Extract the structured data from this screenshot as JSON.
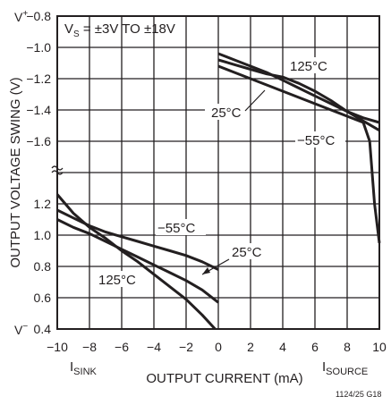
{
  "chart_data": {
    "type": "line",
    "title": "",
    "conditions": {
      "prefix": "V",
      "sub": "S",
      "rest": " = ±3V TO ±18V"
    },
    "xlabel": "OUTPUT CURRENT (mA)",
    "ylabel": "OUTPUT VOLTAGE SWING (V)",
    "xlim": [
      -10,
      10
    ],
    "x_ticks": [
      "−10",
      "−8",
      "−6",
      "−4",
      "−2",
      "0",
      "2",
      "4",
      "6",
      "8",
      "10"
    ],
    "y_ticks_top": [
      "−0.8",
      "−1.0",
      "−1.2",
      "−1.4",
      "−1.6"
    ],
    "y_ticks_bottom": [
      "1.2",
      "1.0",
      "0.8",
      "0.6",
      "0.4"
    ],
    "top_rail": {
      "main": "V",
      "sup": "+"
    },
    "bottom_rail": {
      "main": "V",
      "sup": "−"
    },
    "sink_label": {
      "main": "I",
      "sub": "SINK"
    },
    "source_label": {
      "main": "I",
      "sub": "SOURCE"
    },
    "figure_code": "1124/25 G18",
    "grid": true,
    "series": [
      {
        "name": "125°C",
        "region": "source",
        "x": [
          0,
          1,
          2,
          3,
          4,
          5,
          6,
          7,
          8,
          9,
          10
        ],
        "y": [
          -1.08,
          -1.11,
          -1.14,
          -1.17,
          -1.19,
          -1.23,
          -1.28,
          -1.34,
          -1.41,
          -1.47,
          -1.53
        ]
      },
      {
        "name": "25°C",
        "region": "source",
        "x": [
          0,
          1,
          2,
          3,
          4,
          5,
          6,
          7,
          8,
          9,
          10
        ],
        "y": [
          -1.04,
          -1.08,
          -1.12,
          -1.16,
          -1.21,
          -1.26,
          -1.31,
          -1.36,
          -1.41,
          -1.45,
          -1.48
        ]
      },
      {
        "name": "−55°C",
        "region": "source",
        "x": [
          0,
          1,
          2,
          3,
          4,
          5,
          6,
          7,
          8,
          9,
          9.4,
          9.7,
          10
        ],
        "y": [
          -1.12,
          -1.16,
          -1.2,
          -1.24,
          -1.28,
          -1.32,
          -1.36,
          -1.4,
          -1.44,
          -1.48,
          -1.6,
          -2.0,
          -2.25
        ]
      },
      {
        "name": "−55°C",
        "region": "sink",
        "x": [
          -10,
          -9,
          -8,
          -7,
          -6,
          -5,
          -4,
          -3,
          -2,
          -1,
          0
        ],
        "y": [
          1.16,
          1.11,
          1.06,
          1.02,
          0.99,
          0.96,
          0.93,
          0.9,
          0.87,
          0.83,
          0.78
        ]
      },
      {
        "name": "25°C",
        "region": "sink",
        "x": [
          -10,
          -9,
          -8,
          -7,
          -6,
          -5,
          -4,
          -3,
          -2,
          -1,
          0
        ],
        "y": [
          1.1,
          1.05,
          1.01,
          0.96,
          0.91,
          0.86,
          0.81,
          0.76,
          0.71,
          0.65,
          0.57
        ]
      },
      {
        "name": "125°C",
        "region": "sink",
        "x": [
          -10,
          -9,
          -8,
          -7,
          -6,
          -5,
          -4,
          -3,
          -2,
          -1,
          -0.2
        ],
        "y": [
          1.26,
          1.14,
          1.05,
          0.98,
          0.9,
          0.83,
          0.75,
          0.67,
          0.59,
          0.49,
          0.4
        ]
      }
    ]
  }
}
